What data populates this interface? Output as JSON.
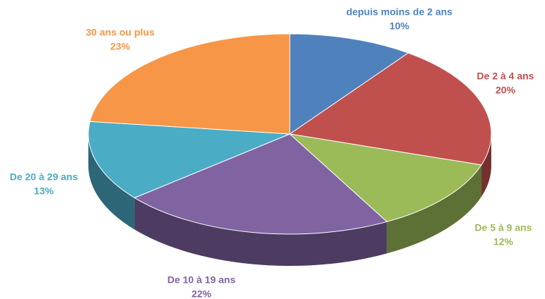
{
  "chart_data": {
    "type": "pie3d",
    "categories": [
      "depuis moins de 2 ans",
      "De 2 à 4 ans",
      "De 5 à 9 ans",
      "De 10 à 19 ans",
      "De 20 à 29 ans",
      "30 ans ou plus"
    ],
    "values": [
      10,
      20,
      12,
      22,
      13,
      23
    ],
    "value_labels": [
      "10%",
      "20%",
      "12%",
      "22%",
      "13%",
      "23%"
    ],
    "colors": [
      "#4f81bd",
      "#c0504d",
      "#9bbb59",
      "#8064a2",
      "#4bacc6",
      "#f79646"
    ]
  }
}
